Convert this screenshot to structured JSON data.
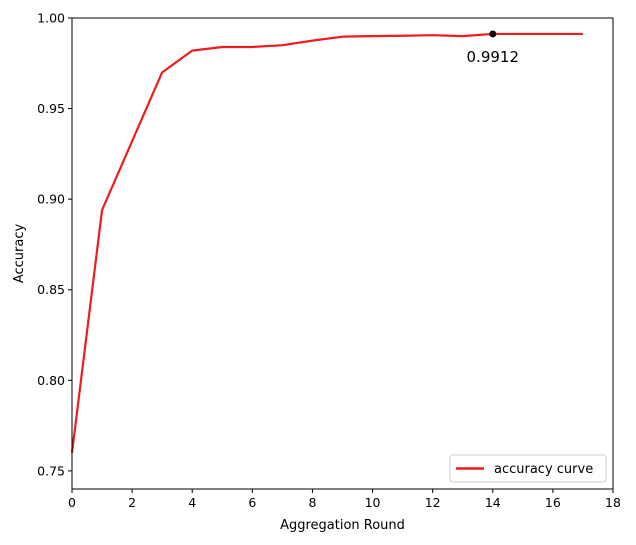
{
  "chart_data": {
    "type": "line",
    "xlabel": "Aggregation Round",
    "ylabel": "Accuracy",
    "xlim": [
      0,
      18
    ],
    "ylim": [
      0.74,
      1.0
    ],
    "xticks": [
      0,
      2,
      4,
      6,
      8,
      10,
      12,
      14,
      16,
      18
    ],
    "yticks": [
      0.75,
      0.8,
      0.85,
      0.9,
      0.95,
      1.0
    ],
    "xtick_labels": [
      "0",
      "2",
      "4",
      "6",
      "8",
      "10",
      "12",
      "14",
      "16",
      "18"
    ],
    "ytick_labels": [
      "0.75",
      "0.80",
      "0.85",
      "0.90",
      "0.95",
      "1.00"
    ],
    "grid": false,
    "legend_position": "lower-right",
    "series": [
      {
        "name": "accuracy curve",
        "color": "#ee1c1c",
        "x": [
          0,
          1,
          3,
          4,
          5,
          6,
          7,
          8,
          9,
          10,
          11,
          12,
          13,
          14,
          15,
          16,
          17
        ],
        "y": [
          0.76,
          0.894,
          0.97,
          0.982,
          0.984,
          0.984,
          0.985,
          0.9875,
          0.9897,
          0.99,
          0.9902,
          0.9905,
          0.99,
          0.9912,
          0.9912,
          0.9912,
          0.9912
        ]
      }
    ],
    "annotation": {
      "text": "0.9912",
      "point_x": 14,
      "point_y": 0.9912
    }
  }
}
